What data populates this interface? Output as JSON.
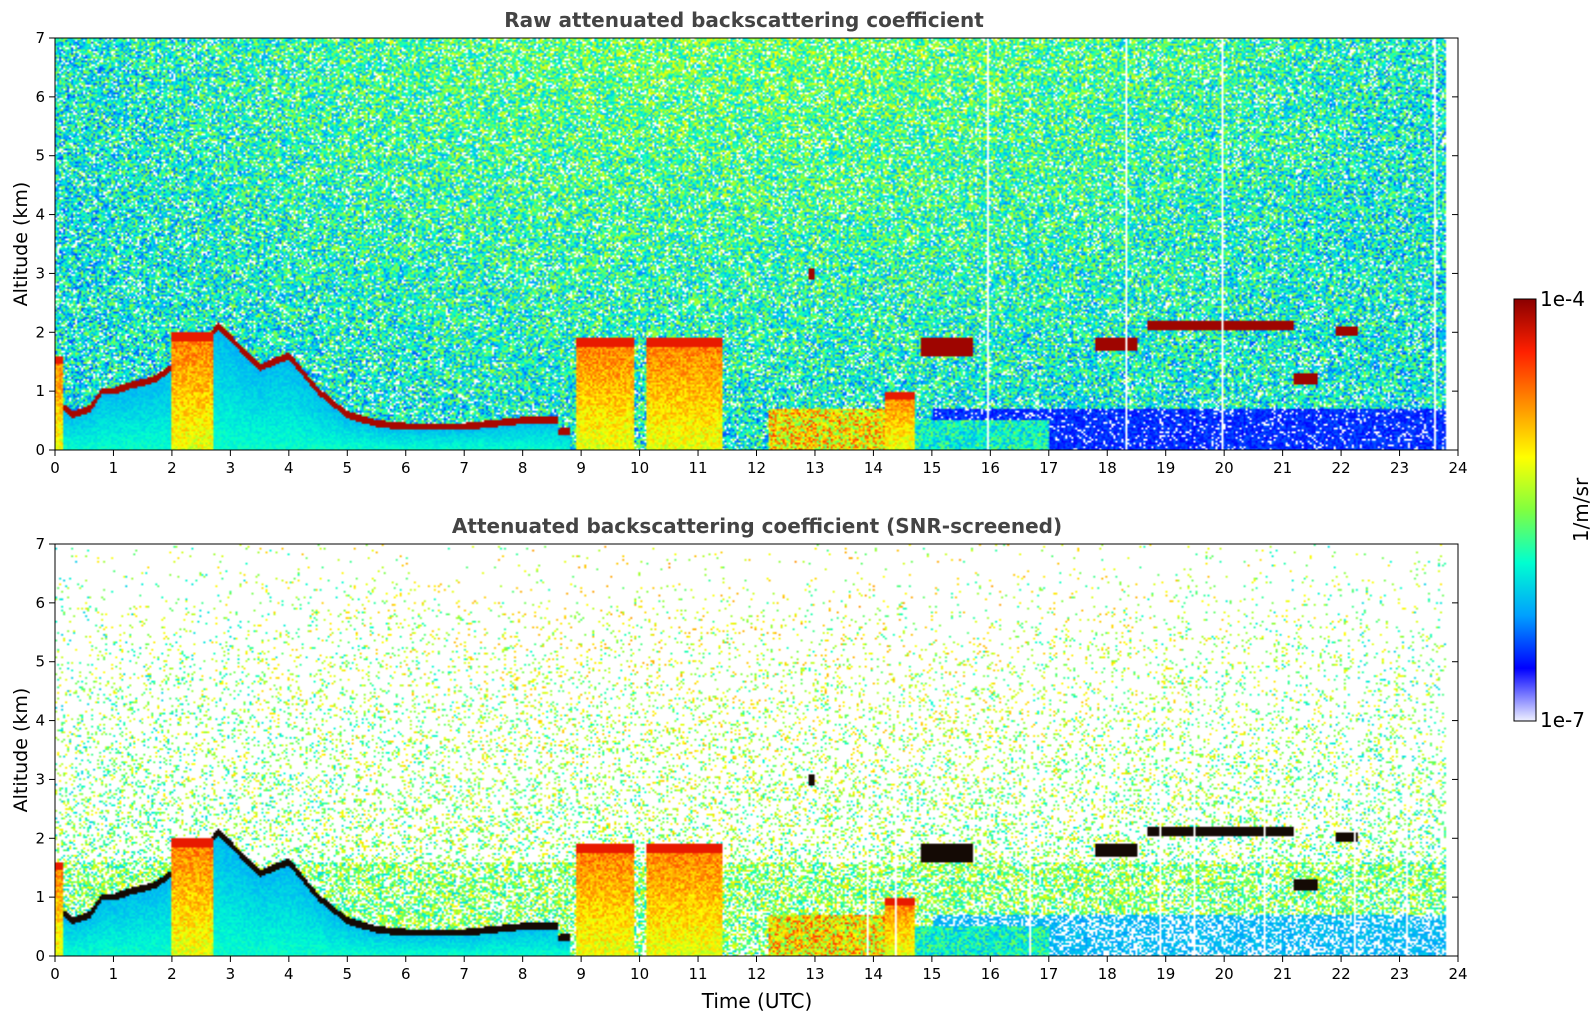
{
  "chart_data": [
    {
      "type": "heatmap",
      "title": "Raw attenuated backscattering coefficient",
      "xlabel": "",
      "ylabel": "Altitude (km)",
      "xlim": [
        0,
        24
      ],
      "ylim": [
        0,
        7
      ],
      "x_ticks": [
        "0",
        "1",
        "2",
        "3",
        "4",
        "5",
        "6",
        "7",
        "8",
        "9",
        "10",
        "11",
        "12",
        "13",
        "14",
        "15",
        "16",
        "17",
        "18",
        "19",
        "20",
        "21",
        "22",
        "23",
        "24"
      ],
      "y_ticks": [
        "0",
        "1",
        "2",
        "3",
        "4",
        "5",
        "6",
        "7"
      ],
      "noise_floor": "full",
      "features": {
        "boundary_layer_top": [
          [
            0.05,
            0.8
          ],
          [
            0.3,
            0.6
          ],
          [
            0.6,
            0.7
          ],
          [
            0.8,
            1.0
          ],
          [
            1.0,
            1.0
          ],
          [
            1.3,
            1.1
          ],
          [
            1.7,
            1.2
          ],
          [
            2.0,
            1.4
          ],
          [
            2.5,
            1.8
          ],
          [
            2.8,
            2.1
          ],
          [
            3.2,
            1.7
          ],
          [
            3.5,
            1.4
          ],
          [
            4.0,
            1.6
          ],
          [
            4.5,
            1.0
          ],
          [
            5.0,
            0.6
          ],
          [
            5.5,
            0.45
          ],
          [
            6.0,
            0.4
          ],
          [
            7.0,
            0.4
          ],
          [
            8.0,
            0.5
          ],
          [
            8.6,
            0.5
          ]
        ],
        "low_aerosol_blocks": [
          [
            0.0,
            0.12,
            0.0,
            1.6
          ],
          [
            2.0,
            2.7,
            0.0,
            2.0
          ],
          [
            8.9,
            9.9,
            0.0,
            1.9
          ],
          [
            10.1,
            11.4,
            0.0,
            1.9
          ],
          [
            14.2,
            14.7,
            0.0,
            1.0
          ]
        ],
        "elevated_layers": [
          [
            18.7,
            21.2,
            2.05,
            2.2
          ],
          [
            21.9,
            22.3,
            1.95,
            2.1
          ],
          [
            17.8,
            18.5,
            1.7,
            1.9
          ],
          [
            21.2,
            21.6,
            1.1,
            1.3
          ],
          [
            14.8,
            15.7,
            1.6,
            1.9
          ],
          [
            12.9,
            13.0,
            2.9,
            3.1
          ]
        ],
        "clear_columns_after_hour": 12.8,
        "data_end_hour": 23.8
      }
    },
    {
      "type": "heatmap",
      "title": "Attenuated backscattering coefficient (SNR-screened)",
      "xlabel": "Time (UTC)",
      "ylabel": "Altitude (km)",
      "xlim": [
        0,
        24
      ],
      "ylim": [
        0,
        7
      ],
      "x_ticks": [
        "0",
        "1",
        "2",
        "3",
        "4",
        "5",
        "6",
        "7",
        "8",
        "9",
        "10",
        "11",
        "12",
        "13",
        "14",
        "15",
        "16",
        "17",
        "18",
        "19",
        "20",
        "21",
        "22",
        "23",
        "24"
      ],
      "y_ticks": [
        "0",
        "1",
        "2",
        "3",
        "4",
        "5",
        "6",
        "7"
      ],
      "noise_floor": "screened",
      "features": {
        "boundary_layer_top": [
          [
            0.05,
            0.8
          ],
          [
            0.3,
            0.6
          ],
          [
            0.6,
            0.7
          ],
          [
            0.8,
            1.0
          ],
          [
            1.0,
            1.0
          ],
          [
            1.3,
            1.1
          ],
          [
            1.7,
            1.2
          ],
          [
            2.0,
            1.4
          ],
          [
            2.5,
            1.8
          ],
          [
            2.8,
            2.1
          ],
          [
            3.2,
            1.7
          ],
          [
            3.5,
            1.4
          ],
          [
            4.0,
            1.6
          ],
          [
            4.5,
            1.0
          ],
          [
            5.0,
            0.6
          ],
          [
            5.5,
            0.45
          ],
          [
            6.0,
            0.4
          ],
          [
            7.0,
            0.4
          ],
          [
            8.0,
            0.5
          ],
          [
            8.6,
            0.5
          ]
        ],
        "low_aerosol_blocks": [
          [
            0.0,
            0.12,
            0.0,
            1.6
          ],
          [
            2.0,
            2.7,
            0.0,
            2.0
          ],
          [
            8.9,
            9.9,
            0.0,
            1.9
          ],
          [
            10.1,
            11.4,
            0.0,
            1.9
          ],
          [
            14.2,
            14.7,
            0.0,
            1.0
          ]
        ],
        "elevated_layers": [
          [
            18.7,
            21.2,
            2.05,
            2.2
          ],
          [
            21.9,
            22.3,
            1.95,
            2.1
          ],
          [
            17.8,
            18.5,
            1.7,
            1.9
          ],
          [
            21.2,
            21.6,
            1.1,
            1.3
          ],
          [
            14.8,
            15.7,
            1.6,
            1.9
          ],
          [
            12.9,
            13.0,
            2.9,
            3.1
          ]
        ],
        "clear_columns_after_hour": 12.8,
        "data_end_hour": 23.8
      }
    }
  ],
  "colorbar": {
    "label": "1/m/sr",
    "max_label": "1e-4",
    "min_label": "1e-7",
    "scale": "log",
    "colormap": [
      "#eef0ff",
      "#0000ff",
      "#00a0ff",
      "#00ffd0",
      "#80ff40",
      "#ffff00",
      "#ff9000",
      "#ff2000",
      "#8b0000"
    ]
  }
}
